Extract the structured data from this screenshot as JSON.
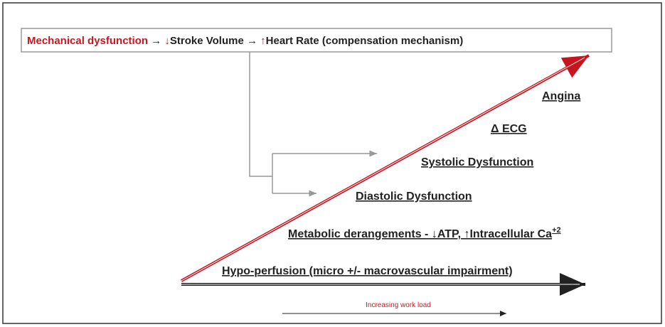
{
  "header": {
    "parts": [
      "Mechanical dysfunction",
      " → ",
      "↓",
      "Stroke Volume",
      " → ",
      "↑",
      "Heart Rate (compensation mechanism)"
    ]
  },
  "steps": [
    "Angina",
    "Δ ECG",
    "Systolic Dysfunction",
    "Diastolic Dysfunction"
  ],
  "metabolic": {
    "text": "Metabolic derangements - ↓ATP, ↑Intracellular Ca",
    "superscript": "+2"
  },
  "hypoperfusion": "Hypo-perfusion (micro +/- macrovascular impairment)",
  "footer": "Increasing work load"
}
